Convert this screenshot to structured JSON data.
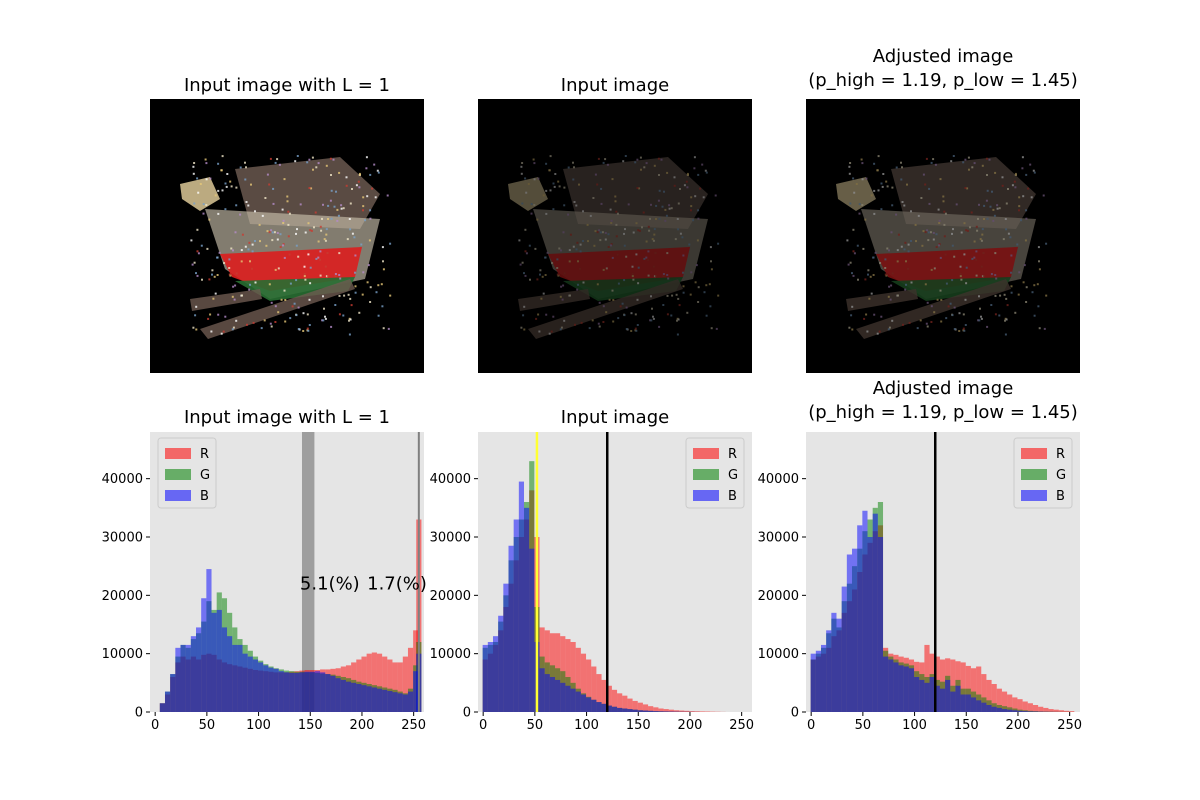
{
  "titles": {
    "panel1": {
      "line1": "Input image with L = 1",
      "line2": ""
    },
    "panel2": {
      "line1": "Input image",
      "line2": ""
    },
    "panel3": {
      "line1": "Adjusted image",
      "line2": "(p_high = 1.19, p_low = 1.45)"
    }
  },
  "images": [
    {
      "description": "ship point cloud rendered at full brightness",
      "brightness": 1.0
    },
    {
      "description": "ship point cloud input (dark)",
      "brightness": 0.45
    },
    {
      "description": "ship point cloud adjusted",
      "brightness": 0.55
    }
  ],
  "colors": {
    "R": "#ff0000",
    "G": "#008000",
    "B": "#0000ff",
    "panel_bg": "#e5e5e5",
    "yellow_line": "#ffff33",
    "black_line": "#000000",
    "gray_band": "#808080"
  },
  "chart_data": [
    {
      "type": "bar",
      "title": "Input image with L = 1",
      "xlim": [
        -5,
        260
      ],
      "ylim": [
        0,
        48000
      ],
      "xticks": [
        0,
        50,
        100,
        150,
        200,
        250
      ],
      "yticks": [
        0,
        10000,
        20000,
        30000,
        40000
      ],
      "legend_position": "top-left",
      "legend": [
        "R",
        "G",
        "B"
      ],
      "bin_width": 5,
      "x": [
        2,
        7,
        12,
        17,
        22,
        27,
        32,
        37,
        42,
        47,
        52,
        57,
        62,
        67,
        72,
        77,
        82,
        87,
        92,
        97,
        102,
        107,
        112,
        117,
        122,
        127,
        132,
        137,
        142,
        147,
        152,
        157,
        162,
        167,
        172,
        177,
        182,
        187,
        192,
        197,
        202,
        207,
        212,
        217,
        222,
        227,
        232,
        237,
        242,
        247,
        252,
        255
      ],
      "series": [
        {
          "name": "R",
          "values": [
            0,
            1500,
            3000,
            6000,
            8500,
            9500,
            9000,
            9500,
            9000,
            9800,
            10000,
            9800,
            9000,
            8500,
            8200,
            8000,
            7800,
            7600,
            7400,
            7200,
            7100,
            7000,
            6900,
            6800,
            6800,
            6800,
            6900,
            7000,
            7100,
            7200,
            7200,
            7200,
            7300,
            7300,
            7400,
            7500,
            7800,
            8000,
            8500,
            9000,
            9500,
            10000,
            10200,
            10000,
            9500,
            9000,
            8500,
            8500,
            9500,
            11000,
            14000,
            33000
          ]
        },
        {
          "name": "G",
          "values": [
            0,
            1500,
            3500,
            6500,
            9500,
            11500,
            11000,
            12500,
            13500,
            15500,
            19000,
            17500,
            20500,
            19500,
            17000,
            14500,
            12500,
            11500,
            10500,
            9500,
            8800,
            8200,
            7800,
            7500,
            7300,
            7100,
            7000,
            6900,
            6900,
            6800,
            6800,
            6700,
            6600,
            6500,
            6400,
            6200,
            6000,
            5800,
            5500,
            5200,
            5000,
            4800,
            4600,
            4400,
            4200,
            4000,
            3800,
            3500,
            3200,
            4000,
            8000,
            12000
          ]
        },
        {
          "name": "B",
          "values": [
            0,
            1500,
            3500,
            6500,
            11000,
            11500,
            11500,
            13000,
            14500,
            19500,
            24500,
            17000,
            17500,
            14500,
            13000,
            11500,
            11500,
            10000,
            9500,
            9000,
            8500,
            8000,
            7600,
            7400,
            7000,
            6800,
            6700,
            6700,
            6800,
            6900,
            6900,
            7000,
            6800,
            6500,
            6200,
            5800,
            5500,
            5200,
            5000,
            4800,
            4600,
            4400,
            4200,
            4000,
            3800,
            3600,
            3400,
            3200,
            3000,
            3500,
            7000,
            10000
          ]
        }
      ],
      "annotations": [
        {
          "text": "5.1(%)",
          "x": 140,
          "y": 22000
        },
        {
          "text": "1.7(%)",
          "x": 205,
          "y": 22000
        }
      ],
      "band": [
        142,
        154
      ],
      "vline": 255
    },
    {
      "type": "bar",
      "title": "Input image",
      "xlim": [
        -5,
        260
      ],
      "ylim": [
        0,
        48000
      ],
      "xticks": [
        0,
        50,
        100,
        150,
        200,
        250
      ],
      "yticks": [
        0,
        10000,
        20000,
        30000,
        40000
      ],
      "legend_position": "top-right",
      "legend": [
        "R",
        "G",
        "B"
      ],
      "bin_width": 5,
      "x": [
        2,
        7,
        12,
        17,
        22,
        27,
        32,
        37,
        42,
        47,
        52,
        57,
        62,
        67,
        72,
        77,
        82,
        87,
        92,
        97,
        102,
        107,
        112,
        117,
        122,
        127,
        132,
        137,
        142,
        147,
        152,
        157,
        162,
        167,
        172,
        177,
        182,
        187,
        192,
        197,
        202,
        207,
        212,
        217,
        222,
        227,
        232
      ],
      "series": [
        {
          "name": "R",
          "values": [
            9000,
            10000,
            11500,
            14000,
            18000,
            22000,
            26000,
            30000,
            33000,
            38000,
            30000,
            14500,
            14000,
            13500,
            13500,
            13000,
            12500,
            12000,
            11000,
            10000,
            9000,
            7800,
            6500,
            5500,
            4500,
            3800,
            3200,
            2800,
            2300,
            1900,
            1600,
            1300,
            1000,
            800,
            600,
            500,
            400,
            300,
            250,
            200,
            150,
            120,
            100,
            80,
            60,
            40,
            20
          ]
        },
        {
          "name": "G",
          "values": [
            11000,
            11500,
            12000,
            15500,
            20000,
            26000,
            30000,
            33000,
            36000,
            43000,
            18000,
            9500,
            8500,
            8000,
            7500,
            7000,
            6000,
            5000,
            4000,
            3200,
            2600,
            2100,
            1700,
            1400,
            1100,
            900,
            700,
            600,
            500,
            400,
            300,
            250,
            200,
            150,
            120,
            100,
            80,
            60,
            40,
            30,
            20,
            10,
            0,
            0,
            0,
            0,
            0
          ]
        },
        {
          "name": "B",
          "values": [
            11500,
            12000,
            13000,
            16500,
            22000,
            28500,
            33000,
            39500,
            35000,
            28000,
            12000,
            7500,
            6500,
            6000,
            5500,
            5000,
            4500,
            4000,
            3500,
            3000,
            2500,
            2100,
            1700,
            1400,
            1100,
            900,
            700,
            600,
            500,
            400,
            300,
            250,
            200,
            150,
            120,
            100,
            80,
            60,
            40,
            30,
            20,
            10,
            0,
            0,
            0,
            0,
            0
          ]
        }
      ],
      "vlines": [
        {
          "x": 52,
          "color": "yellow"
        },
        {
          "x": 120,
          "color": "black"
        }
      ]
    },
    {
      "type": "bar",
      "title": "Adjusted image (p_high = 1.19, p_low = 1.45)",
      "xlim": [
        -5,
        260
      ],
      "ylim": [
        0,
        48000
      ],
      "xticks": [
        0,
        50,
        100,
        150,
        200,
        250
      ],
      "yticks": [
        0,
        10000,
        20000,
        30000,
        40000
      ],
      "legend_position": "top-right",
      "legend": [
        "R",
        "G",
        "B"
      ],
      "bin_width": 5,
      "x": [
        2,
        7,
        12,
        17,
        22,
        27,
        32,
        37,
        42,
        47,
        52,
        57,
        62,
        67,
        72,
        77,
        82,
        87,
        92,
        97,
        102,
        107,
        112,
        117,
        122,
        127,
        132,
        137,
        142,
        147,
        152,
        157,
        162,
        167,
        172,
        177,
        182,
        187,
        192,
        197,
        202,
        207,
        212,
        217,
        222,
        227,
        232,
        237,
        242,
        247,
        252
      ],
      "series": [
        {
          "name": "R",
          "values": [
            9000,
            9500,
            10000,
            11000,
            13000,
            14000,
            17000,
            19000,
            21000,
            24000,
            27000,
            29000,
            31000,
            32000,
            11000,
            10000,
            9800,
            9500,
            9300,
            9000,
            8600,
            8500,
            11500,
            10000,
            9500,
            9000,
            9200,
            9000,
            8700,
            8500,
            7900,
            7500,
            7800,
            6500,
            5500,
            4800,
            4000,
            3500,
            3000,
            2500,
            2200,
            1800,
            1500,
            1200,
            900,
            700,
            500,
            400,
            300,
            200,
            150
          ]
        },
        {
          "name": "G",
          "values": [
            9000,
            10000,
            11000,
            13500,
            16000,
            14500,
            19000,
            22000,
            25000,
            28000,
            31000,
            33000,
            35000,
            36000,
            10500,
            9500,
            9000,
            8500,
            8300,
            8000,
            7000,
            6500,
            6000,
            6500,
            5500,
            5200,
            6200,
            4500,
            5500,
            4000,
            4000,
            3500,
            3000,
            2500,
            2000,
            1500,
            1200,
            1000,
            800,
            600,
            400,
            300,
            200,
            150,
            100,
            80,
            60,
            40,
            30,
            20,
            10
          ]
        },
        {
          "name": "B",
          "values": [
            10000,
            10500,
            11500,
            14000,
            17000,
            16000,
            21500,
            27000,
            28000,
            32000,
            34500,
            30000,
            34000,
            30000,
            9500,
            9000,
            8500,
            8000,
            7800,
            7500,
            6000,
            5500,
            5000,
            6000,
            4500,
            4000,
            5500,
            3500,
            4500,
            3000,
            3000,
            2500,
            2000,
            1600,
            1200,
            900,
            700,
            500,
            400,
            300,
            200,
            150,
            100,
            80,
            60,
            40,
            30,
            20,
            10,
            5,
            0
          ]
        }
      ],
      "vline": 120
    }
  ]
}
